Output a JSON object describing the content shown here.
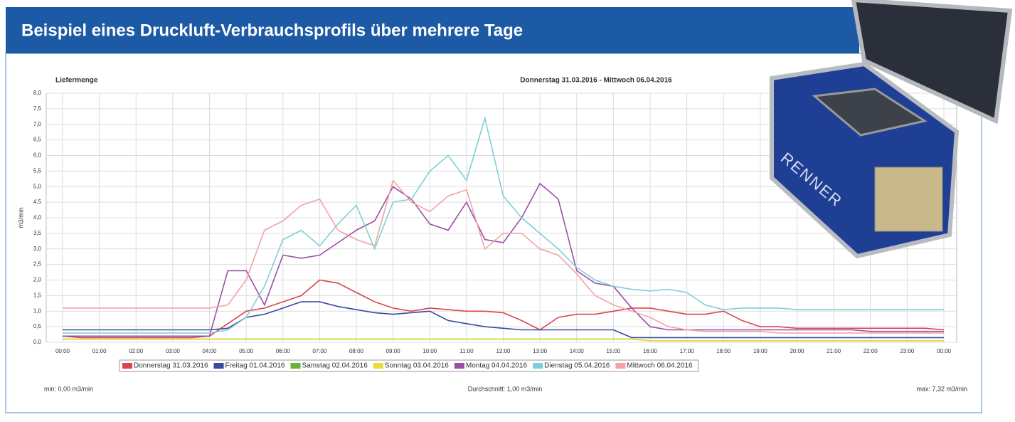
{
  "header": {
    "title": "Beispiel eines Druckluft-Verbrauchsprofils über mehrere Tage"
  },
  "device": {
    "brand": "RENNER"
  },
  "chart_data": {
    "type": "line",
    "title": "Liefermenge",
    "subtitle": "Donnerstag 31.03.2016 - Mittwoch 06.04.2016",
    "y_label": "m3/min",
    "x": [
      0,
      0.5,
      1,
      1.5,
      2,
      2.5,
      3,
      3.5,
      4,
      4.5,
      5,
      5.5,
      6,
      6.5,
      7,
      7.5,
      8,
      8.5,
      9,
      9.5,
      10,
      10.5,
      11,
      11.5,
      12,
      12.5,
      13,
      13.5,
      14,
      14.5,
      15,
      15.5,
      16,
      16.5,
      17,
      17.5,
      18,
      18.5,
      19,
      19.5,
      20,
      20.5,
      21,
      21.5,
      22,
      22.5,
      23,
      23.5,
      24
    ],
    "xlim": [
      0,
      24
    ],
    "xticks": [
      {
        "value": 0,
        "label": "00:00"
      },
      {
        "value": 1,
        "label": "01:00"
      },
      {
        "value": 2,
        "label": "02:00"
      },
      {
        "value": 3,
        "label": "03:00"
      },
      {
        "value": 4,
        "label": "04:00"
      },
      {
        "value": 5,
        "label": "05:00"
      },
      {
        "value": 6,
        "label": "06:00"
      },
      {
        "value": 7,
        "label": "07:00"
      },
      {
        "value": 8,
        "label": "08:00"
      },
      {
        "value": 9,
        "label": "09:00"
      },
      {
        "value": 10,
        "label": "10:00"
      },
      {
        "value": 11,
        "label": "11:00"
      },
      {
        "value": 12,
        "label": "12:00"
      },
      {
        "value": 13,
        "label": "13:00"
      },
      {
        "value": 14,
        "label": "14:00"
      },
      {
        "value": 15,
        "label": "15:00"
      },
      {
        "value": 16,
        "label": "16:00"
      },
      {
        "value": 17,
        "label": "17:00"
      },
      {
        "value": 18,
        "label": "18:00"
      },
      {
        "value": 19,
        "label": "19:00"
      },
      {
        "value": 20,
        "label": "20:00"
      },
      {
        "value": 21,
        "label": "21:00"
      },
      {
        "value": 22,
        "label": "22:00"
      },
      {
        "value": 23,
        "label": "23:00"
      },
      {
        "value": 24,
        "label": "00:00"
      }
    ],
    "ylim": [
      0,
      8
    ],
    "yticks": [
      {
        "value": 0,
        "label": "0,0"
      },
      {
        "value": 0.5,
        "label": "0,5"
      },
      {
        "value": 1,
        "label": "1,0"
      },
      {
        "value": 1.5,
        "label": "1,5"
      },
      {
        "value": 2,
        "label": "2,0"
      },
      {
        "value": 2.5,
        "label": "2,5"
      },
      {
        "value": 3,
        "label": "3,0"
      },
      {
        "value": 3.5,
        "label": "3,5"
      },
      {
        "value": 4,
        "label": "4,0"
      },
      {
        "value": 4.5,
        "label": "4,5"
      },
      {
        "value": 5,
        "label": "5,0"
      },
      {
        "value": 5.5,
        "label": "5,5"
      },
      {
        "value": 6,
        "label": "6,0"
      },
      {
        "value": 6.5,
        "label": "6,5"
      },
      {
        "value": 7,
        "label": "7,0"
      },
      {
        "value": 7.5,
        "label": "7,5"
      },
      {
        "value": 8,
        "label": "8,0"
      }
    ],
    "grid": true,
    "series": [
      {
        "name": "Donnerstag 31.03.2016",
        "color": "#d9464c",
        "values": [
          0.2,
          0.15,
          0.15,
          0.15,
          0.15,
          0.15,
          0.15,
          0.15,
          0.2,
          0.6,
          1.0,
          1.1,
          1.3,
          1.5,
          2.0,
          1.9,
          1.6,
          1.3,
          1.1,
          1.0,
          1.1,
          1.05,
          1.0,
          1.0,
          0.95,
          0.7,
          0.4,
          0.8,
          0.9,
          0.9,
          1.0,
          1.1,
          1.1,
          1.0,
          0.9,
          0.9,
          1.0,
          0.7,
          0.5,
          0.5,
          0.45,
          0.45,
          0.45,
          0.45,
          0.45,
          0.45,
          0.45,
          0.45,
          0.4
        ]
      },
      {
        "name": "Freitag 01.04.2016",
        "color": "#3a4a9c",
        "values": [
          0.4,
          0.4,
          0.4,
          0.4,
          0.4,
          0.4,
          0.4,
          0.4,
          0.4,
          0.45,
          0.8,
          0.9,
          1.1,
          1.3,
          1.3,
          1.15,
          1.05,
          0.95,
          0.9,
          0.95,
          1.0,
          0.7,
          0.6,
          0.5,
          0.45,
          0.4,
          0.4,
          0.4,
          0.4,
          0.4,
          0.4,
          0.15,
          0.15,
          0.15,
          0.15,
          0.15,
          0.15,
          0.15,
          0.15,
          0.15,
          0.15,
          0.15,
          0.15,
          0.15,
          0.15,
          0.15,
          0.15,
          0.15,
          0.15
        ]
      },
      {
        "name": "Samstag 02.04.2016",
        "color": "#6bb33a",
        "values": [
          0.1,
          0.1,
          0.1,
          0.1,
          0.1,
          0.1,
          0.1,
          0.1,
          0.1,
          0.1,
          0.1,
          0.1,
          0.1,
          0.1,
          0.1,
          0.1,
          0.1,
          0.1,
          0.1,
          0.1,
          0.1,
          0.1,
          0.1,
          0.1,
          0.1,
          0.1,
          0.1,
          0.1,
          0.1,
          0.1,
          0.1,
          0.1,
          0.05,
          0.05,
          0.05,
          0.05,
          0.05,
          0.05,
          0.05,
          0.05,
          0.05,
          0.05,
          0.05,
          0.05,
          0.05,
          0.05,
          0.05,
          0.05,
          0.05
        ]
      },
      {
        "name": "Sonntag 03.04.2016",
        "color": "#e6dc3c",
        "values": [
          0.1,
          0.1,
          0.1,
          0.1,
          0.1,
          0.1,
          0.1,
          0.1,
          0.1,
          0.1,
          0.1,
          0.1,
          0.1,
          0.1,
          0.1,
          0.1,
          0.1,
          0.1,
          0.1,
          0.1,
          0.1,
          0.1,
          0.1,
          0.1,
          0.1,
          0.1,
          0.1,
          0.1,
          0.1,
          0.1,
          0.1,
          0.1,
          0.05,
          0.05,
          0.05,
          0.05,
          0.05,
          0.05,
          0.05,
          0.05,
          0.05,
          0.05,
          0.05,
          0.05,
          0.05,
          0.05,
          0.05,
          0.05,
          0.05
        ]
      },
      {
        "name": "Montag 04.04.2016",
        "color": "#9b4fa6",
        "values": [
          0.2,
          0.2,
          0.2,
          0.2,
          0.2,
          0.2,
          0.2,
          0.2,
          0.2,
          2.3,
          2.3,
          1.2,
          2.8,
          2.7,
          2.8,
          3.2,
          3.6,
          3.9,
          5.0,
          4.6,
          3.8,
          3.6,
          4.5,
          3.3,
          3.2,
          4.0,
          5.1,
          4.6,
          2.3,
          1.9,
          1.8,
          1.1,
          0.5,
          0.4,
          0.4,
          0.4,
          0.4,
          0.4,
          0.4,
          0.4,
          0.4,
          0.4,
          0.4,
          0.4,
          0.35,
          0.35,
          0.35,
          0.35,
          0.35
        ]
      },
      {
        "name": "Dienstag 05.04.2016",
        "color": "#7fd0d6",
        "values": [
          0.3,
          0.3,
          0.3,
          0.3,
          0.3,
          0.3,
          0.3,
          0.3,
          0.3,
          0.4,
          0.8,
          1.8,
          3.3,
          3.6,
          3.1,
          3.8,
          4.4,
          3.0,
          4.5,
          4.6,
          5.5,
          6.0,
          5.2,
          7.2,
          4.7,
          4.0,
          3.5,
          3.0,
          2.4,
          2.0,
          1.8,
          1.7,
          1.65,
          1.7,
          1.6,
          1.2,
          1.05,
          1.1,
          1.1,
          1.1,
          1.05,
          1.05,
          1.05,
          1.05,
          1.05,
          1.05,
          1.05,
          1.05,
          1.05
        ]
      },
      {
        "name": "Mittwoch 06.04.2016",
        "color": "#f2a3a8",
        "values": [
          1.1,
          1.1,
          1.1,
          1.1,
          1.1,
          1.1,
          1.1,
          1.1,
          1.1,
          1.2,
          2.0,
          3.6,
          3.9,
          4.4,
          4.6,
          3.6,
          3.3,
          3.1,
          5.2,
          4.5,
          4.2,
          4.7,
          4.9,
          3.0,
          3.5,
          3.5,
          3.0,
          2.8,
          2.2,
          1.5,
          1.2,
          1.0,
          0.8,
          0.5,
          0.4,
          0.35,
          0.35,
          0.35,
          0.35,
          0.3,
          0.3,
          0.3,
          0.3,
          0.3,
          0.3,
          0.3,
          0.3,
          0.3,
          0.3
        ]
      }
    ],
    "footer": {
      "min": "min: 0,00 m3/min",
      "mean": "Durchschnitt: 1,00 m3/min",
      "max": "max: 7,32 m3/min"
    }
  }
}
